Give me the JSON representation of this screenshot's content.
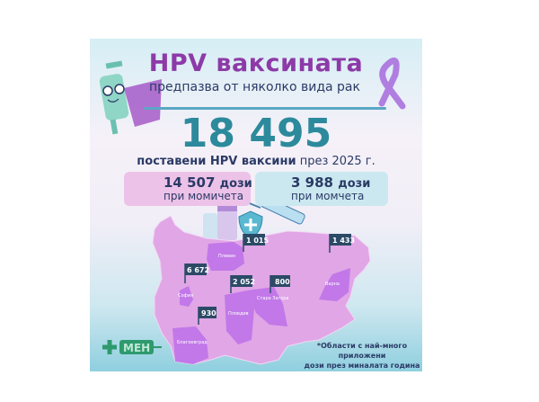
{
  "header": {
    "title": "HPV ваксината",
    "subtitle": "предпазва от няколко вида рак"
  },
  "total": {
    "value": "18 495",
    "caption_bold": "поставени HPV ваксини",
    "caption_rest": "през 2025 г."
  },
  "girls": {
    "value": "14 507",
    "unit": "дози",
    "label": "при момичета",
    "color": "#ecc2e8"
  },
  "boys": {
    "value": "3 988",
    "unit": "дози",
    "label": "при момчета",
    "color": "#cbe8f0"
  },
  "map": {
    "base_color": "#e0a6e6",
    "highlight_color": "#c278e8",
    "flag_color": "#2b4a66",
    "regions": [
      {
        "name": "Плевен",
        "value": "1 015"
      },
      {
        "name": "Варна",
        "value": "1 433"
      },
      {
        "name": "София",
        "value": "6 672"
      },
      {
        "name": "Пловдив",
        "value": "2 052"
      },
      {
        "name": "Стара Загора",
        "value": "800"
      },
      {
        "name": "Благоевград",
        "value": "930"
      }
    ]
  },
  "note": {
    "line1": "*Области с най-много приложени",
    "line2": "дози през миналата година"
  },
  "logo": {
    "text": "МЕН",
    "color": "#2e9a6e"
  },
  "icons": [
    "syringe-mascot-icon",
    "awareness-ribbon-icon",
    "girl-avatar-icon",
    "boy-avatar-icon",
    "vaccine-vials-icon",
    "shield-plus-icon",
    "syringe-icon"
  ]
}
